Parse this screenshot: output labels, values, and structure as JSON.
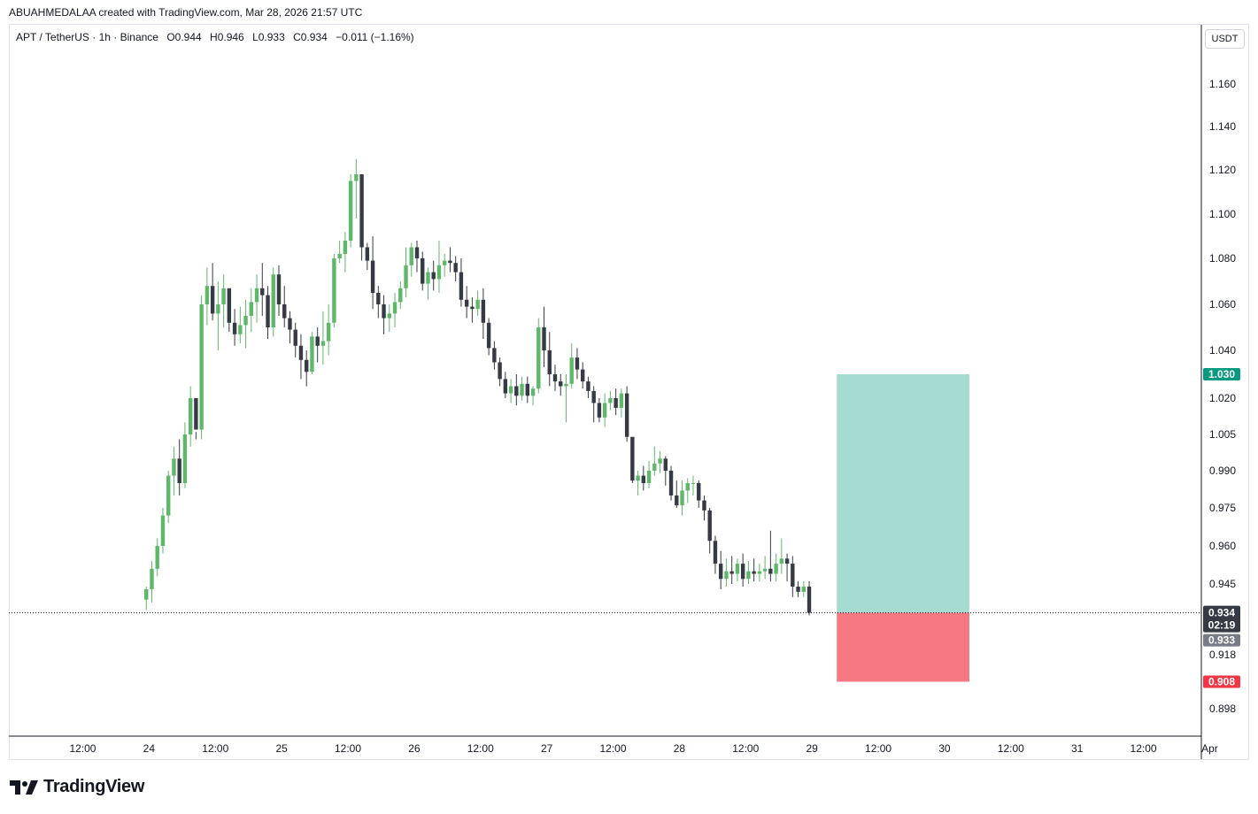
{
  "header": {
    "credit": "ABUAHMEDALAA created with TradingView.com, Mar 28, 2026 21:57 UTC"
  },
  "symbol": {
    "name": "APT / TetherUS · 1h · Binance",
    "open": "O0.944",
    "high": "H0.946",
    "low": "L0.933",
    "close": "C0.934",
    "change": "−0.011 (−1.16%)",
    "change_color": "#131722"
  },
  "currency_label": "USDT",
  "brand": {
    "name": "TradingView"
  },
  "colors": {
    "up": "#5fb86a",
    "down": "#363a45",
    "profit_zone": "#a5dbd1",
    "loss_zone": "#f57882",
    "target_tag": "#089981",
    "stop_tag": "#f23645",
    "price_tag": "#363a45",
    "countdown_tag": "#363a45",
    "low_tag": "#787b86"
  },
  "chart_data": {
    "type": "candlestick",
    "price_axis": {
      "ticks": [
        {
          "value": 1.16,
          "label": "1.160"
        },
        {
          "value": 1.14,
          "label": "1.140"
        },
        {
          "value": 1.12,
          "label": "1.120"
        },
        {
          "value": 1.1,
          "label": "1.100"
        },
        {
          "value": 1.08,
          "label": "1.080"
        },
        {
          "value": 1.06,
          "label": "1.060"
        },
        {
          "value": 1.04,
          "label": "1.040"
        },
        {
          "value": 1.02,
          "label": "1.020"
        },
        {
          "value": 1.005,
          "label": "1.005"
        },
        {
          "value": 0.99,
          "label": "0.990"
        },
        {
          "value": 0.975,
          "label": "0.975"
        },
        {
          "value": 0.96,
          "label": "0.960"
        },
        {
          "value": 0.945,
          "label": "0.945"
        },
        {
          "value": 0.918,
          "label": "0.918"
        },
        {
          "value": 0.898,
          "label": "0.898"
        }
      ]
    },
    "time_axis": {
      "ticks": [
        {
          "label": "12:00",
          "t": 12
        },
        {
          "label": "24",
          "t": 24
        },
        {
          "label": "12:00",
          "t": 36
        },
        {
          "label": "25",
          "t": 48
        },
        {
          "label": "12:00",
          "t": 60
        },
        {
          "label": "26",
          "t": 72
        },
        {
          "label": "12:00",
          "t": 84
        },
        {
          "label": "27",
          "t": 96
        },
        {
          "label": "12:00",
          "t": 108
        },
        {
          "label": "28",
          "t": 120
        },
        {
          "label": "12:00",
          "t": 132
        },
        {
          "label": "29",
          "t": 144
        },
        {
          "label": "12:00",
          "t": 156
        },
        {
          "label": "30",
          "t": 168
        },
        {
          "label": "12:00",
          "t": 180
        },
        {
          "label": "31",
          "t": 192
        },
        {
          "label": "12:00",
          "t": 204
        },
        {
          "label": "Apr",
          "t": 216
        }
      ]
    },
    "candles_ohlc": [
      [
        0.939,
        0.944,
        0.935,
        0.943
      ],
      [
        0.943,
        0.954,
        0.938,
        0.951
      ],
      [
        0.951,
        0.963,
        0.948,
        0.96
      ],
      [
        0.96,
        0.975,
        0.957,
        0.972
      ],
      [
        0.972,
        0.99,
        0.969,
        0.988
      ],
      [
        0.988,
        1.0,
        0.98,
        0.995
      ],
      [
        0.995,
        1.003,
        0.98,
        0.985
      ],
      [
        0.985,
        1.01,
        0.983,
        1.005
      ],
      [
        1.005,
        1.025,
        1.0,
        1.02
      ],
      [
        1.02,
        1.006,
        1.003,
        1.007
      ],
      [
        1.007,
        1.064,
        1.003,
        1.06
      ],
      [
        1.06,
        1.076,
        1.051,
        1.068
      ],
      [
        1.068,
        1.078,
        1.053,
        1.056
      ],
      [
        1.056,
        1.07,
        1.04,
        1.06
      ],
      [
        1.06,
        1.073,
        1.05,
        1.067
      ],
      [
        1.067,
        1.066,
        1.048,
        1.052
      ],
      [
        1.052,
        1.058,
        1.042,
        1.047
      ],
      [
        1.047,
        1.059,
        1.043,
        1.051
      ],
      [
        1.051,
        1.062,
        1.041,
        1.055
      ],
      [
        1.055,
        1.067,
        1.048,
        1.061
      ],
      [
        1.061,
        1.073,
        1.052,
        1.067
      ],
      [
        1.067,
        1.078,
        1.055,
        1.064
      ],
      [
        1.064,
        1.068,
        1.045,
        1.05
      ],
      [
        1.05,
        1.076,
        1.046,
        1.073
      ],
      [
        1.073,
        1.077,
        1.055,
        1.06
      ],
      [
        1.06,
        1.068,
        1.05,
        1.054
      ],
      [
        1.054,
        1.057,
        1.043,
        1.049
      ],
      [
        1.049,
        1.052,
        1.037,
        1.042
      ],
      [
        1.042,
        1.047,
        1.028,
        1.036
      ],
      [
        1.036,
        1.04,
        1.025,
        1.031
      ],
      [
        1.031,
        1.048,
        1.03,
        1.046
      ],
      [
        1.046,
        1.05,
        1.035,
        1.042
      ],
      [
        1.042,
        1.057,
        1.034,
        1.044
      ],
      [
        1.044,
        1.06,
        1.038,
        1.052
      ],
      [
        1.052,
        1.082,
        1.05,
        1.08
      ],
      [
        1.08,
        1.088,
        1.078,
        1.082
      ],
      [
        1.082,
        1.092,
        1.074,
        1.088
      ],
      [
        1.088,
        1.118,
        1.085,
        1.115
      ],
      [
        1.115,
        1.125,
        1.098,
        1.118
      ],
      [
        1.118,
        1.112,
        1.079,
        1.085
      ],
      [
        1.085,
        1.087,
        1.075,
        1.079
      ],
      [
        1.079,
        1.09,
        1.058,
        1.065
      ],
      [
        1.065,
        1.068,
        1.054,
        1.06
      ],
      [
        1.06,
        1.064,
        1.047,
        1.054
      ],
      [
        1.054,
        1.06,
        1.048,
        1.056
      ],
      [
        1.056,
        1.065,
        1.05,
        1.061
      ],
      [
        1.061,
        1.07,
        1.058,
        1.067
      ],
      [
        1.067,
        1.085,
        1.063,
        1.077
      ],
      [
        1.077,
        1.087,
        1.072,
        1.085
      ],
      [
        1.085,
        1.088,
        1.074,
        1.08
      ],
      [
        1.08,
        1.083,
        1.066,
        1.069
      ],
      [
        1.069,
        1.076,
        1.062,
        1.074
      ],
      [
        1.074,
        1.079,
        1.066,
        1.071
      ],
      [
        1.071,
        1.088,
        1.065,
        1.077
      ],
      [
        1.077,
        1.082,
        1.072,
        1.079
      ],
      [
        1.079,
        1.085,
        1.074,
        1.078
      ],
      [
        1.078,
        1.081,
        1.07,
        1.074
      ],
      [
        1.074,
        1.08,
        1.059,
        1.062
      ],
      [
        1.062,
        1.068,
        1.054,
        1.059
      ],
      [
        1.059,
        1.063,
        1.052,
        1.058
      ],
      [
        1.058,
        1.066,
        1.055,
        1.062
      ],
      [
        1.062,
        1.067,
        1.045,
        1.052
      ],
      [
        1.052,
        1.054,
        1.038,
        1.041
      ],
      [
        1.041,
        1.044,
        1.032,
        1.035
      ],
      [
        1.035,
        1.037,
        1.025,
        1.028
      ],
      [
        1.028,
        1.031,
        1.02,
        1.022
      ],
      [
        1.022,
        1.028,
        1.018,
        1.025
      ],
      [
        1.025,
        1.03,
        1.017,
        1.021
      ],
      [
        1.021,
        1.029,
        1.019,
        1.026
      ],
      [
        1.026,
        1.029,
        1.018,
        1.021
      ],
      [
        1.021,
        1.025,
        1.017,
        1.024
      ],
      [
        1.024,
        1.054,
        1.022,
        1.05
      ],
      [
        1.05,
        1.059,
        1.033,
        1.04
      ],
      [
        1.04,
        1.048,
        1.025,
        1.03
      ],
      [
        1.03,
        1.034,
        1.023,
        1.027
      ],
      [
        1.027,
        1.03,
        1.021,
        1.025
      ],
      [
        1.025,
        1.03,
        1.01,
        1.026
      ],
      [
        1.026,
        1.043,
        1.024,
        1.037
      ],
      [
        1.037,
        1.041,
        1.028,
        1.032
      ],
      [
        1.032,
        1.035,
        1.024,
        1.027
      ],
      [
        1.027,
        1.029,
        1.02,
        1.023
      ],
      [
        1.023,
        1.025,
        1.01,
        1.018
      ],
      [
        1.018,
        1.02,
        1.01,
        1.012
      ],
      [
        1.012,
        1.022,
        1.008,
        1.018
      ],
      [
        1.018,
        1.023,
        1.015,
        1.02
      ],
      [
        1.02,
        1.024,
        1.013,
        1.016
      ],
      [
        1.016,
        1.024,
        1.012,
        1.022
      ],
      [
        1.022,
        1.025,
        1.002,
        1.004
      ],
      [
        1.004,
        0.998,
        0.985,
        0.986
      ],
      [
        0.986,
        0.99,
        0.98,
        0.988
      ],
      [
        0.988,
        0.992,
        0.982,
        0.985
      ],
      [
        0.985,
        0.994,
        0.983,
        0.99
      ],
      [
        0.99,
        1.0,
        0.988,
        0.993
      ],
      [
        0.993,
        0.998,
        0.989,
        0.995
      ],
      [
        0.995,
        0.996,
        0.984,
        0.99
      ],
      [
        0.99,
        0.992,
        0.978,
        0.98
      ],
      [
        0.98,
        0.986,
        0.975,
        0.976
      ],
      [
        0.976,
        0.986,
        0.972,
        0.982
      ],
      [
        0.982,
        0.987,
        0.977,
        0.985
      ],
      [
        0.985,
        0.988,
        0.98,
        0.985
      ],
      [
        0.985,
        0.986,
        0.975,
        0.978
      ],
      [
        0.978,
        0.98,
        0.97,
        0.974
      ],
      [
        0.974,
        0.975,
        0.957,
        0.962
      ],
      [
        0.962,
        0.964,
        0.949,
        0.953
      ],
      [
        0.953,
        0.958,
        0.943,
        0.947
      ],
      [
        0.947,
        0.955,
        0.944,
        0.95
      ],
      [
        0.95,
        0.956,
        0.945,
        0.949
      ],
      [
        0.949,
        0.955,
        0.946,
        0.953
      ],
      [
        0.953,
        0.957,
        0.944,
        0.947
      ],
      [
        0.947,
        0.954,
        0.945,
        0.95
      ],
      [
        0.95,
        0.955,
        0.946,
        0.949
      ],
      [
        0.949,
        0.953,
        0.946,
        0.95
      ],
      [
        0.95,
        0.956,
        0.947,
        0.951
      ],
      [
        0.951,
        0.966,
        0.946,
        0.949
      ],
      [
        0.949,
        0.957,
        0.946,
        0.953
      ],
      [
        0.953,
        0.963,
        0.949,
        0.955
      ],
      [
        0.955,
        0.957,
        0.946,
        0.953
      ],
      [
        0.953,
        0.956,
        0.94,
        0.944
      ],
      [
        0.944,
        0.946,
        0.94,
        0.942
      ],
      [
        0.942,
        0.946,
        0.94,
        0.944
      ],
      [
        0.944,
        0.946,
        0.933,
        0.934
      ]
    ],
    "last_price": "0.934",
    "countdown": "02:19",
    "session_low": "0.933",
    "position": {
      "target": 1.03,
      "target_label": "1.030",
      "entry": 0.934,
      "stop": 0.908,
      "stop_label": "0.908"
    }
  }
}
